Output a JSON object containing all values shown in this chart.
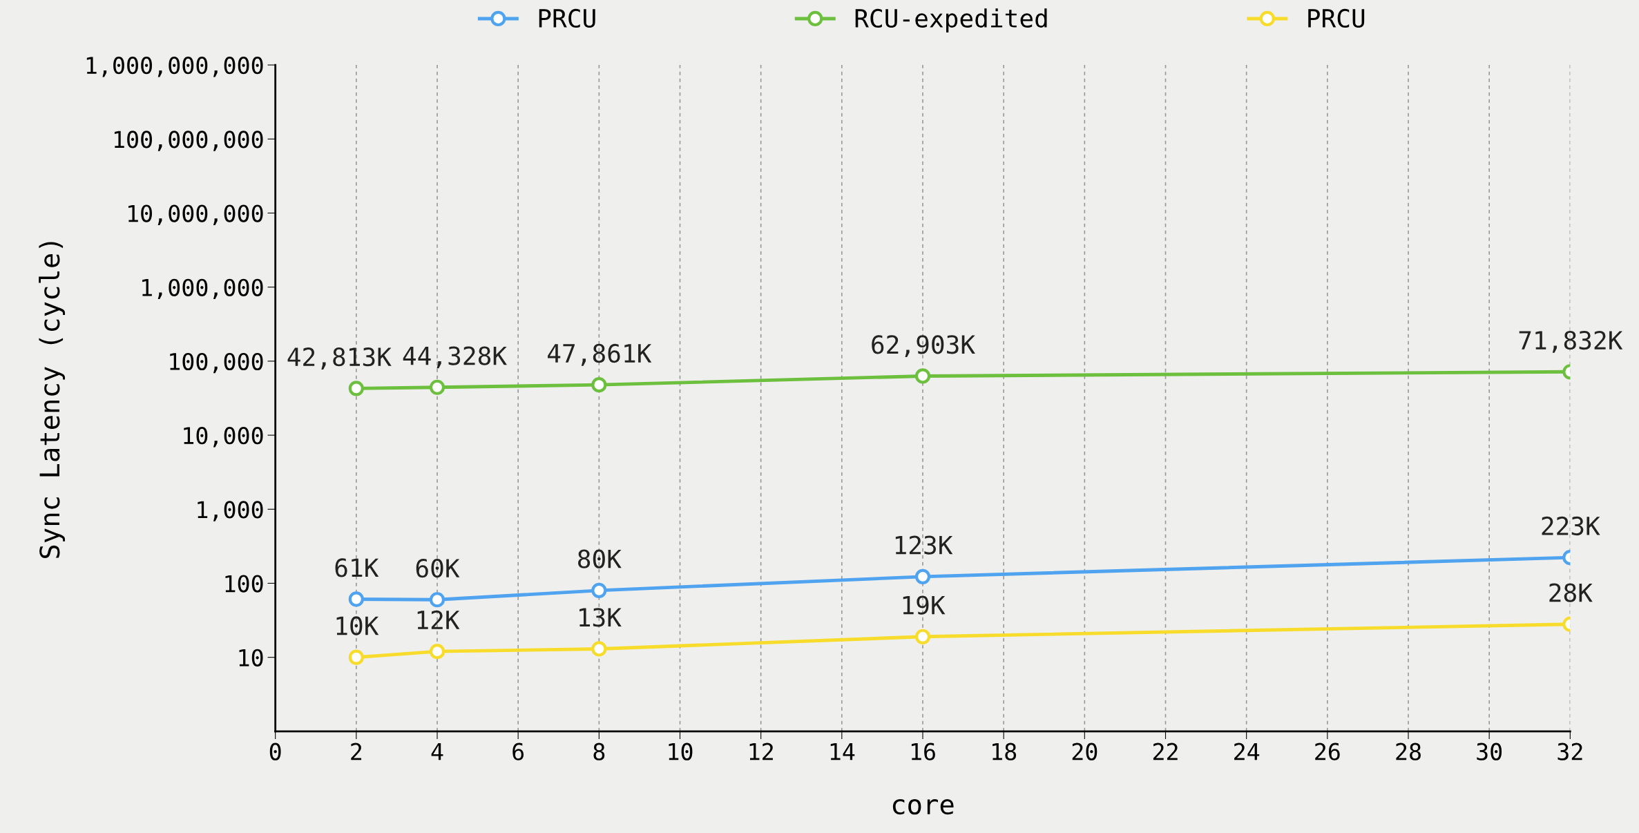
{
  "chart_data": {
    "type": "line",
    "xlabel": "core",
    "ylabel": "Sync Latency (cycle)",
    "x": [
      2,
      4,
      8,
      16,
      32
    ],
    "series": [
      {
        "name": "PRCU",
        "color": "#4fa3ef",
        "values": [
          61,
          60,
          80,
          123,
          223
        ],
        "value_labels": [
          "61K",
          "60K",
          "80K",
          "123K",
          "223K"
        ]
      },
      {
        "name": "RCU-expedited",
        "color": "#6dbf3e",
        "values": [
          42813,
          44328,
          47861,
          62903,
          71832
        ],
        "value_labels": [
          "42,813K",
          "44,328K",
          "47,861K",
          "62,903K",
          "71,832K"
        ]
      },
      {
        "name": "PRCU",
        "color": "#f7dc2c",
        "values": [
          10,
          12,
          13,
          19,
          28
        ],
        "value_labels": [
          "10K",
          "12K",
          "13K",
          "19K",
          "28K"
        ]
      }
    ],
    "log": "y",
    "xlim": [
      0,
      32
    ],
    "xticks": [
      0,
      2,
      4,
      6,
      8,
      10,
      12,
      14,
      16,
      18,
      20,
      22,
      24,
      26,
      28,
      30,
      32
    ],
    "ylim": [
      1,
      1000000000
    ],
    "yticks": [
      {
        "value": 10,
        "label": "10"
      },
      {
        "value": 100,
        "label": "100"
      },
      {
        "value": 1000,
        "label": "1,000"
      },
      {
        "value": 10000,
        "label": "10,000"
      },
      {
        "value": 100000,
        "label": "100,000"
      },
      {
        "value": 1000000,
        "label": "1,000,000"
      },
      {
        "value": 10000000,
        "label": "10,000,000"
      },
      {
        "value": 100000000,
        "label": "100,000,000"
      },
      {
        "value": 1000000000,
        "label": "1,000,000,000"
      }
    ],
    "grid": "x",
    "legend": "top",
    "marker": "circle",
    "line_style": "solid"
  }
}
